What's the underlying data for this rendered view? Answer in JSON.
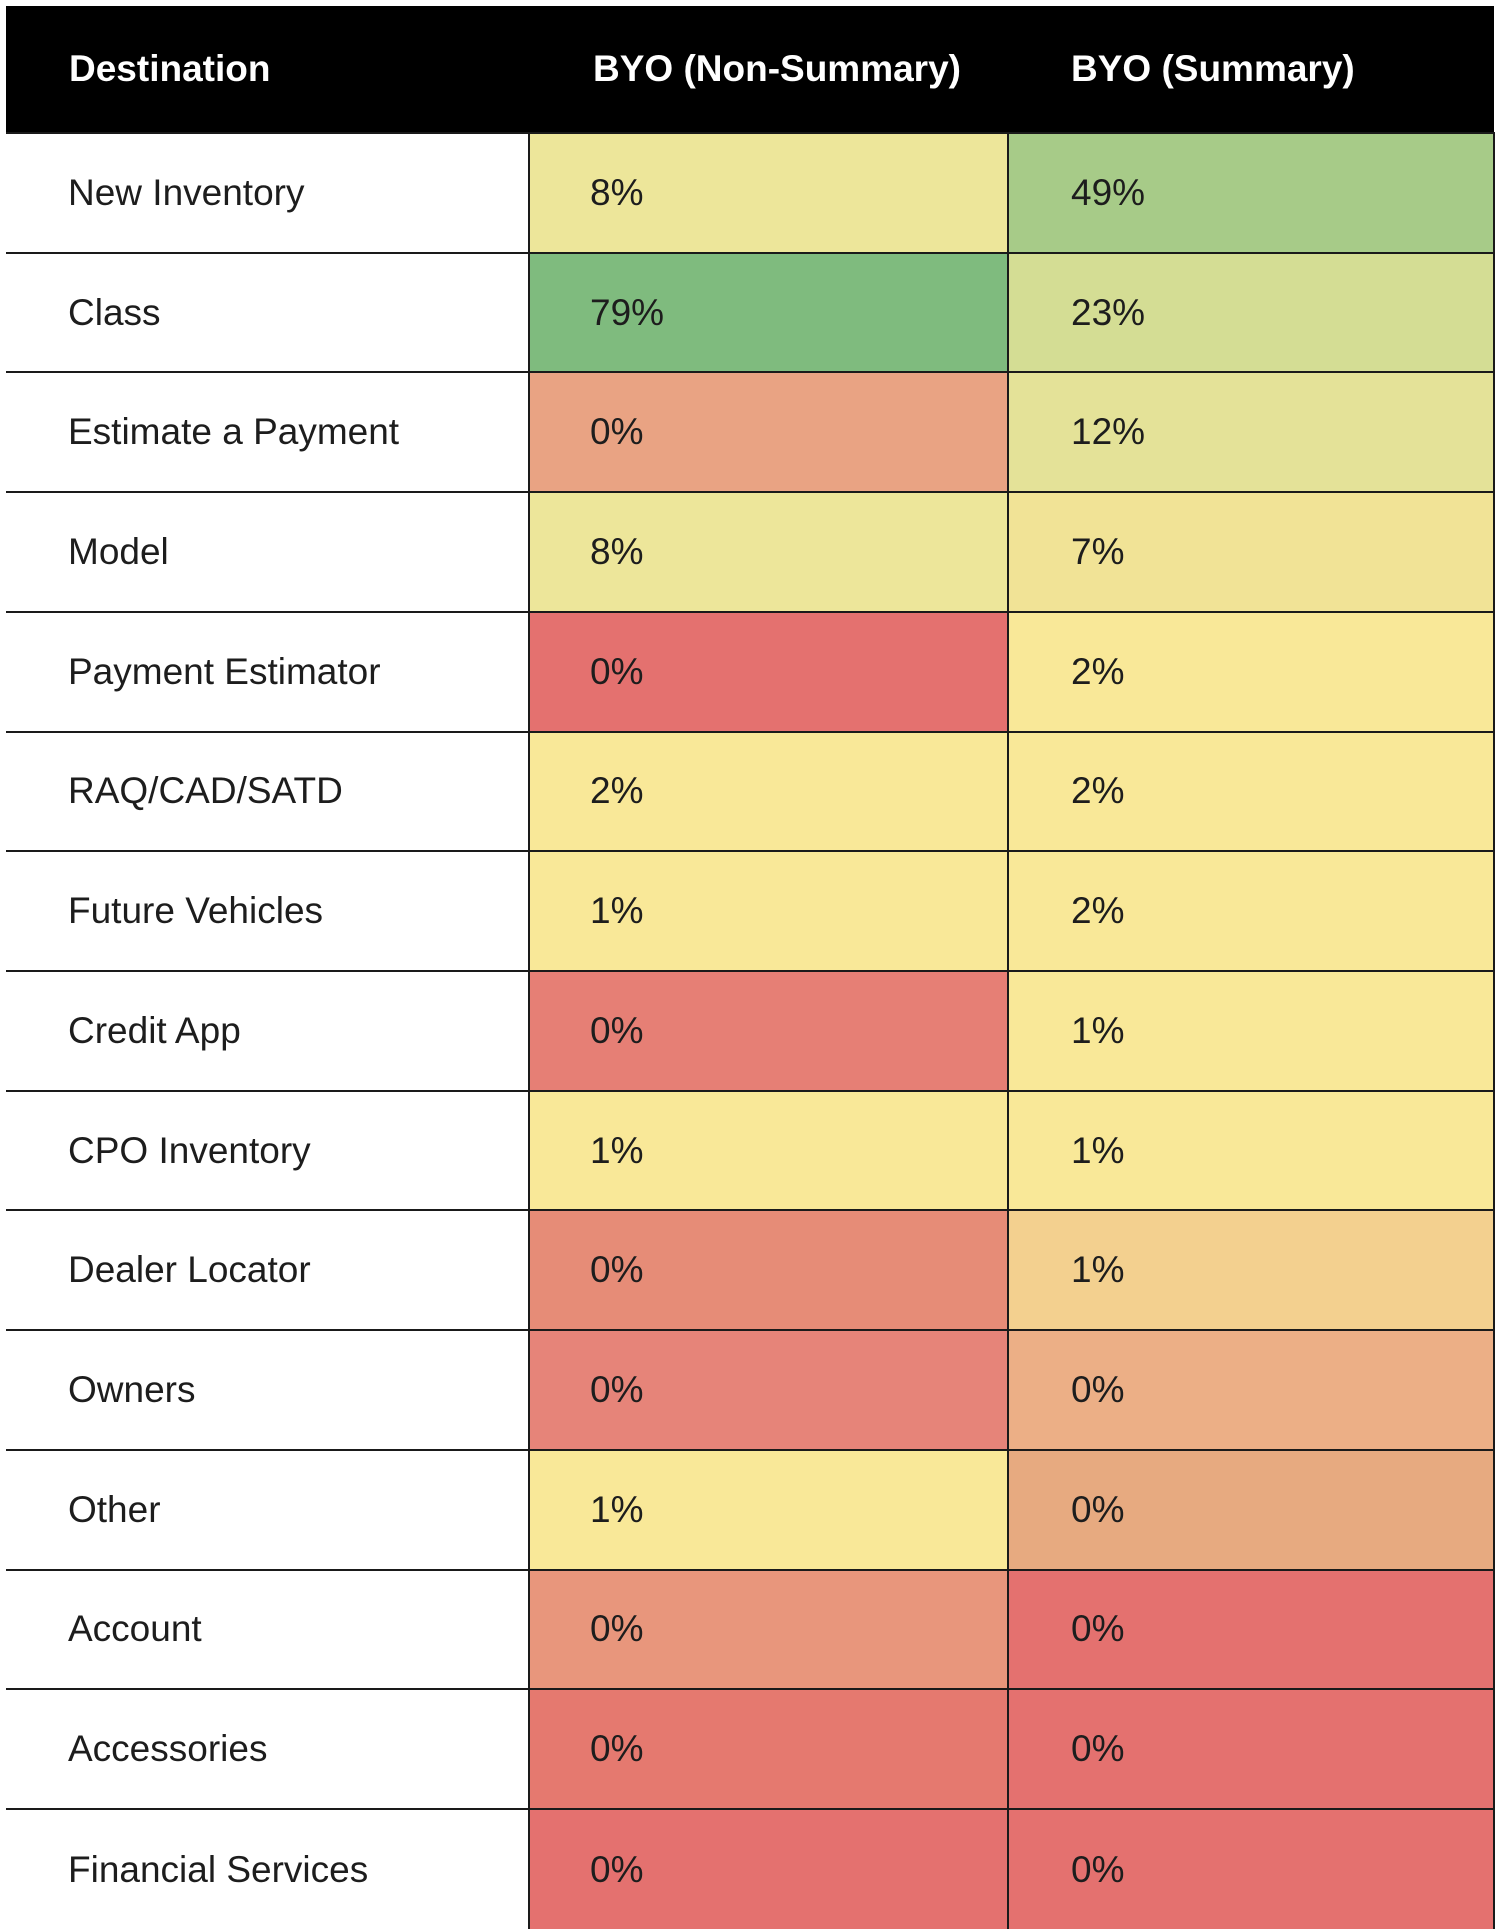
{
  "chart_data": {
    "type": "heatmap",
    "columns": [
      "Destination",
      "BYO (Non-Summary)",
      "BYO (Summary)"
    ],
    "rows": [
      {
        "destination": "New Inventory",
        "values": [
          "8%",
          "49%"
        ],
        "numeric": [
          8,
          49
        ],
        "colors": [
          "#ede69a",
          "#a7cb88"
        ]
      },
      {
        "destination": "Class",
        "values": [
          "79%",
          "23%"
        ],
        "numeric": [
          79,
          23
        ],
        "colors": [
          "#7fbb7e",
          "#d4dd94"
        ]
      },
      {
        "destination": "Estimate a Payment",
        "values": [
          "0%",
          "12%"
        ],
        "numeric": [
          0,
          12
        ],
        "colors": [
          "#e9a383",
          "#e4e298"
        ]
      },
      {
        "destination": "Model",
        "values": [
          "8%",
          "7%"
        ],
        "numeric": [
          8,
          7
        ],
        "colors": [
          "#ede69a",
          "#f1e396"
        ]
      },
      {
        "destination": "Payment Estimator",
        "values": [
          "0%",
          "2%"
        ],
        "numeric": [
          0,
          2
        ],
        "colors": [
          "#e4716f",
          "#f9e898"
        ]
      },
      {
        "destination": "RAQ/CAD/SATD",
        "values": [
          "2%",
          "2%"
        ],
        "numeric": [
          2,
          2
        ],
        "colors": [
          "#f9e898",
          "#f9e898"
        ]
      },
      {
        "destination": "Future Vehicles",
        "values": [
          "1%",
          "2%"
        ],
        "numeric": [
          1,
          2
        ],
        "colors": [
          "#f9e898",
          "#f9e898"
        ]
      },
      {
        "destination": "Credit App",
        "values": [
          "0%",
          "1%"
        ],
        "numeric": [
          0,
          1
        ],
        "colors": [
          "#e67f75",
          "#f9e898"
        ]
      },
      {
        "destination": "CPO Inventory",
        "values": [
          "1%",
          "1%"
        ],
        "numeric": [
          1,
          1
        ],
        "colors": [
          "#f9e898",
          "#f9e898"
        ]
      },
      {
        "destination": "Dealer Locator",
        "values": [
          "0%",
          "1%"
        ],
        "numeric": [
          0,
          1
        ],
        "colors": [
          "#e68c77",
          "#f3d08f"
        ]
      },
      {
        "destination": "Owners",
        "values": [
          "0%",
          "0%"
        ],
        "numeric": [
          0,
          0
        ],
        "colors": [
          "#e68479",
          "#ecaf86"
        ]
      },
      {
        "destination": "Other",
        "values": [
          "1%",
          "0%"
        ],
        "numeric": [
          1,
          0
        ],
        "colors": [
          "#f9e898",
          "#e7aa80"
        ]
      },
      {
        "destination": "Account",
        "values": [
          "0%",
          "0%"
        ],
        "numeric": [
          0,
          0
        ],
        "colors": [
          "#e8967c",
          "#e4716f"
        ]
      },
      {
        "destination": "Accessories",
        "values": [
          "0%",
          "0%"
        ],
        "numeric": [
          0,
          0
        ],
        "colors": [
          "#e5796f",
          "#e4716f"
        ]
      },
      {
        "destination": "Financial Services",
        "values": [
          "0%",
          "0%"
        ],
        "numeric": [
          0,
          0
        ],
        "colors": [
          "#e4716f",
          "#e4716f"
        ]
      }
    ],
    "header_background": "#000000",
    "header_text_color": "#ffffff"
  }
}
